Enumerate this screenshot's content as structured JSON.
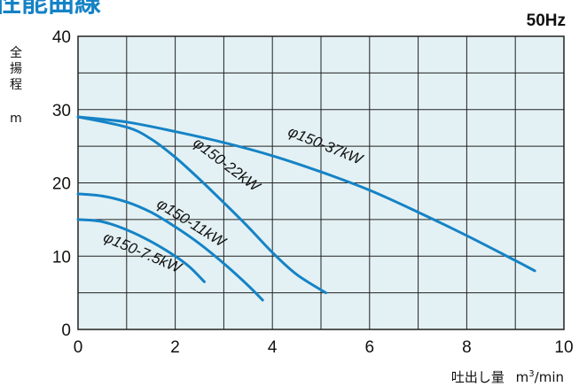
{
  "header": {
    "title": "性能曲線",
    "frequency": "50Hz"
  },
  "chart_data": {
    "type": "line",
    "title": "性能曲線",
    "xlabel": "吐出し量 m³/min",
    "ylabel": "全揚程 m",
    "ylabel_chars": [
      "全",
      "揚",
      "程"
    ],
    "ylabel_unit": "m",
    "xlabel_text": "吐出し量",
    "xlabel_unit_base": "m",
    "xlabel_unit_sup": "3",
    "xlabel_unit_rest": "/min",
    "xlim": [
      0,
      10
    ],
    "ylim": [
      0,
      40
    ],
    "xticks": [
      0,
      2,
      4,
      6,
      8,
      10
    ],
    "yticks": [
      0,
      10,
      20,
      30,
      40
    ],
    "grid": true,
    "background_color": "#e3f1f4",
    "line_color": "#1583c6",
    "series": [
      {
        "name": "φ150-37kW",
        "x": [
          0,
          1,
          2,
          3,
          4,
          5,
          6,
          7,
          8,
          9,
          9.4
        ],
        "y": [
          29,
          28.3,
          27,
          25.5,
          23.7,
          21.5,
          19,
          16,
          12.8,
          9.4,
          8
        ]
      },
      {
        "name": "φ150-22kW",
        "x": [
          0,
          1,
          1.5,
          2,
          2.5,
          3,
          3.5,
          4,
          4.5,
          5.1
        ],
        "y": [
          29,
          27.6,
          26,
          23.5,
          20.5,
          17.3,
          14,
          10.5,
          7.5,
          5
        ]
      },
      {
        "name": "φ150-11kW",
        "x": [
          0,
          0.5,
          1,
          1.5,
          2,
          2.5,
          3,
          3.5,
          3.8
        ],
        "y": [
          18.5,
          18.2,
          17.4,
          16,
          14,
          11.7,
          9,
          6,
          4
        ]
      },
      {
        "name": "φ150-7.5kW",
        "x": [
          0,
          0.5,
          1,
          1.5,
          2,
          2.3,
          2.6
        ],
        "y": [
          15,
          14.7,
          13.6,
          12,
          10,
          8.5,
          6.5
        ]
      }
    ]
  }
}
